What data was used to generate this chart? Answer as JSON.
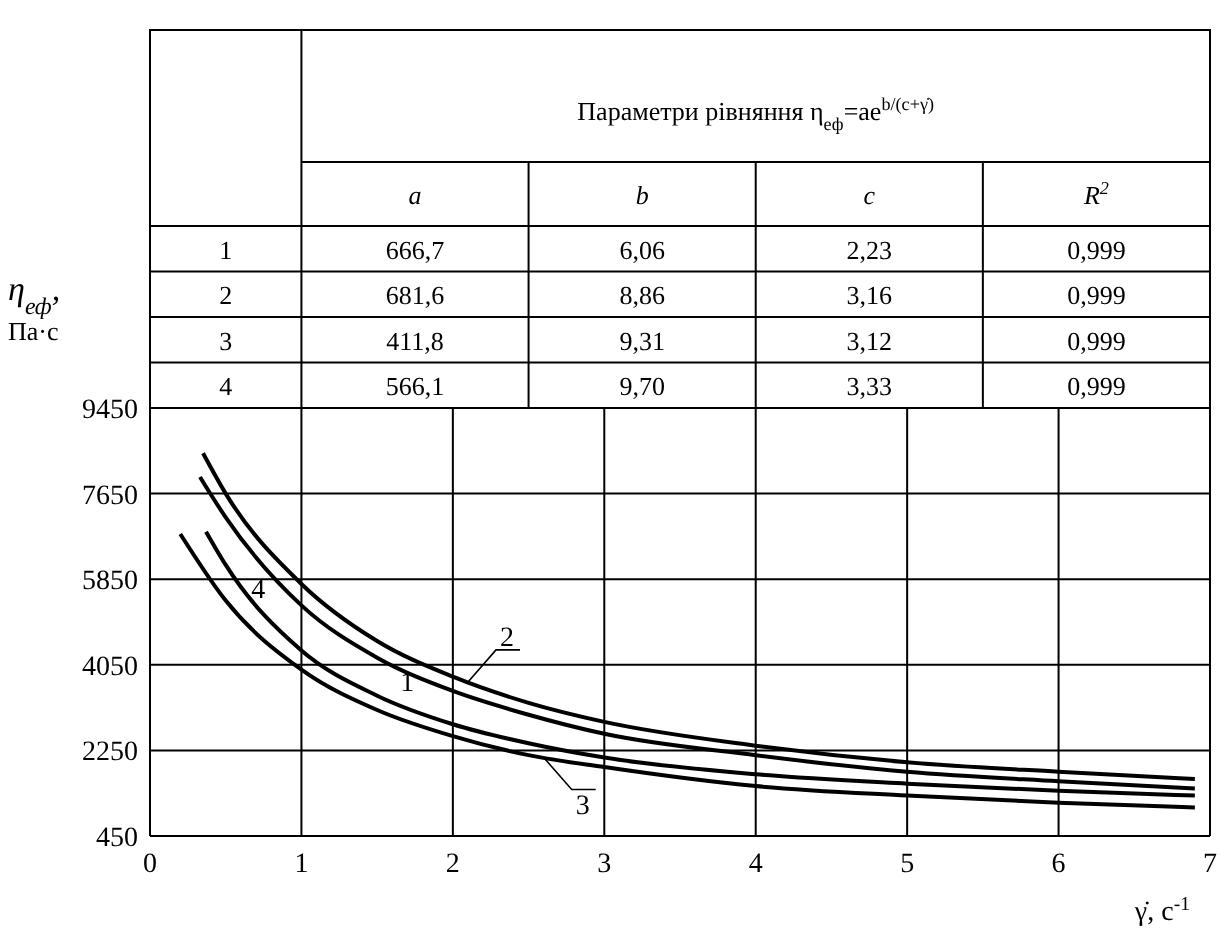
{
  "chart_data": {
    "type": "line",
    "title": "Параметри рівняння η$_{еф}$=ae$^{b/(c+γ̇)}$",
    "xlabel": "γ̇, с$^{-1}$",
    "ylabel": "η$_{еф}$, Па·с",
    "annotations": [
      "a",
      "b",
      "c",
      "R$^{2}$",
      "1",
      "666,7",
      "6,06",
      "2,23",
      "0,999",
      "2",
      "681,6",
      "8,86",
      "3,16",
      "0,999",
      "3",
      "411,8",
      "9,31",
      "3,12",
      "0,999",
      "4",
      "566,1",
      "9,70",
      "3,33",
      "0,999"
    ],
    "xlim": [
      0,
      7
    ],
    "xticks": [
      0,
      1,
      2,
      3,
      4,
      5,
      6,
      7
    ],
    "ylim": [
      450,
      9450
    ],
    "yticks": [
      450,
      2250,
      4050,
      5850,
      7650,
      9450
    ],
    "grid": true,
    "marker": "none",
    "line_style": "solid",
    "series": [
      {
        "name": "1",
        "color": "#000000",
        "x": [
          0.37,
          0.5,
          1,
          1.5,
          2,
          2.5,
          3,
          4,
          5,
          6,
          6.9
        ],
        "values": [
          6850,
          6150,
          4350,
          3400,
          2800,
          2400,
          2100,
          1750,
          1550,
          1400,
          1300
        ]
      },
      {
        "name": "2",
        "color": "#000000",
        "x": [
          0.35,
          0.5,
          1,
          1.5,
          2,
          2.5,
          3,
          4,
          5,
          6,
          6.9
        ],
        "values": [
          8500,
          7650,
          5750,
          4550,
          3800,
          3250,
          2850,
          2350,
          2000,
          1800,
          1650
        ]
      },
      {
        "name": "3",
        "color": "#000000",
        "x": [
          0.2,
          0.5,
          1,
          1.5,
          2,
          2.5,
          3,
          4,
          5,
          6,
          6.9
        ],
        "values": [
          6800,
          5400,
          3950,
          3100,
          2550,
          2150,
          1900,
          1500,
          1300,
          1150,
          1050
        ]
      },
      {
        "name": "4",
        "color": "#000000",
        "x": [
          0.33,
          0.5,
          1,
          1.5,
          2,
          2.5,
          3,
          4,
          5,
          6,
          6.9
        ],
        "values": [
          8000,
          7150,
          5300,
          4200,
          3500,
          3000,
          2600,
          2150,
          1800,
          1600,
          1450
        ]
      }
    ]
  }
}
